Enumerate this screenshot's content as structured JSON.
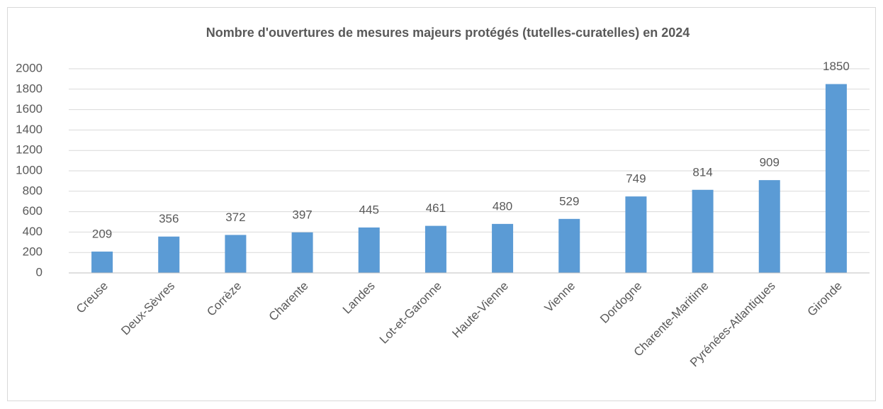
{
  "chart_data": {
    "type": "bar",
    "title": "Nombre d'ouvertures de mesures majeurs protégés (tutelles-curatelles) en 2024",
    "categories": [
      "Creuse",
      "Deux-Sèvres",
      "Corrèze",
      "Charente",
      "Landes",
      "Lot-et-Garonne",
      "Haute-Vienne",
      "Vienne",
      "Dordogne",
      "Charente-Maritime",
      "Pyrénées-Atlantiques",
      "Gironde"
    ],
    "values": [
      209,
      356,
      372,
      397,
      445,
      461,
      480,
      529,
      749,
      814,
      909,
      1850
    ],
    "color": "#5b9bd5",
    "ylim": [
      0,
      2000
    ],
    "yticks": [
      0,
      200,
      400,
      600,
      800,
      1000,
      1200,
      1400,
      1600,
      1800,
      2000
    ],
    "grid": true
  }
}
